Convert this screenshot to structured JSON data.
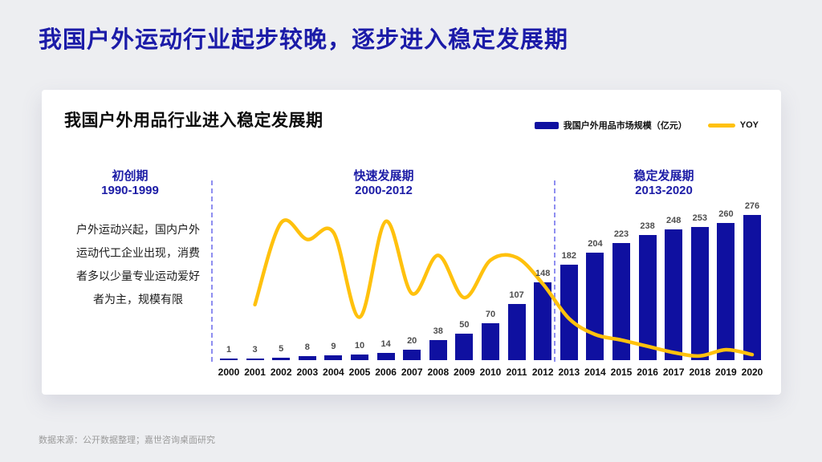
{
  "slide": {
    "title": "我国户外运动行业起步较晚，逐步进入稳定发展期"
  },
  "card": {
    "title": "我国户外用品行业进入稳定发展期",
    "description": "户外运动兴起，国内户外运动代工企业出现，消费者多以少量专业运动爱好者为主，规模有限"
  },
  "legend": {
    "bar_label": "我国户外用品市场规模（亿元）",
    "line_label": "YOY"
  },
  "phases": [
    {
      "name": "初创期",
      "years": "1990-1999"
    },
    {
      "name": "快速发展期",
      "years": "2000-2012"
    },
    {
      "name": "稳定发展期",
      "years": "2013-2020"
    }
  ],
  "footer": {
    "source": "数据来源：公开数据整理；嘉世咨询桌面研究"
  },
  "colors": {
    "bar_blue": "#0F10A0",
    "line_yellow": "#FFC10D",
    "title_blue": "#1B1BA8",
    "phase_blue": "#1C1CA6",
    "divider_blue": "#8E8EF0"
  },
  "chart_data": {
    "type": "bar",
    "title": "我国户外用品行业进入稳定发展期",
    "xlabel": "",
    "ylabel": "",
    "grid": false,
    "value_labels": true,
    "legend_position": "top-right",
    "categories": [
      2000,
      2001,
      2002,
      2003,
      2004,
      2005,
      2006,
      2007,
      2008,
      2009,
      2010,
      2011,
      2012,
      2013,
      2014,
      2015,
      2016,
      2017,
      2018,
      2019,
      2020
    ],
    "series": [
      {
        "name": "我国户外用品市场规模（亿元）",
        "type": "bar",
        "values": [
          1,
          3,
          5,
          8,
          9,
          10,
          14,
          20,
          38,
          50,
          70,
          107,
          148,
          182,
          204,
          223,
          238,
          248,
          253,
          260,
          276
        ]
      },
      {
        "name": "YOY",
        "type": "line",
        "note": "no numeric axis shown on chart; level = relative height of curve read from plot (0 = x-axis baseline, 1 = curve maximum at 2006)",
        "points": [
          {
            "year": 2001,
            "level": 0.4
          },
          {
            "year": 2002,
            "level": 0.99
          },
          {
            "year": 2003,
            "level": 0.87
          },
          {
            "year": 2004,
            "level": 0.92
          },
          {
            "year": 2005,
            "level": 0.31
          },
          {
            "year": 2006,
            "level": 1.0
          },
          {
            "year": 2007,
            "level": 0.48
          },
          {
            "year": 2008,
            "level": 0.755
          },
          {
            "year": 2009,
            "level": 0.45
          },
          {
            "year": 2010,
            "level": 0.72
          },
          {
            "year": 2011,
            "level": 0.74
          },
          {
            "year": 2012,
            "level": 0.55
          },
          {
            "year": 2013,
            "level": 0.3
          },
          {
            "year": 2014,
            "level": 0.185
          },
          {
            "year": 2015,
            "level": 0.145
          },
          {
            "year": 2016,
            "level": 0.1
          },
          {
            "year": 2017,
            "level": 0.055
          },
          {
            "year": 2018,
            "level": 0.03
          },
          {
            "year": 2019,
            "level": 0.075
          },
          {
            "year": 2020,
            "level": 0.04
          }
        ]
      }
    ]
  }
}
